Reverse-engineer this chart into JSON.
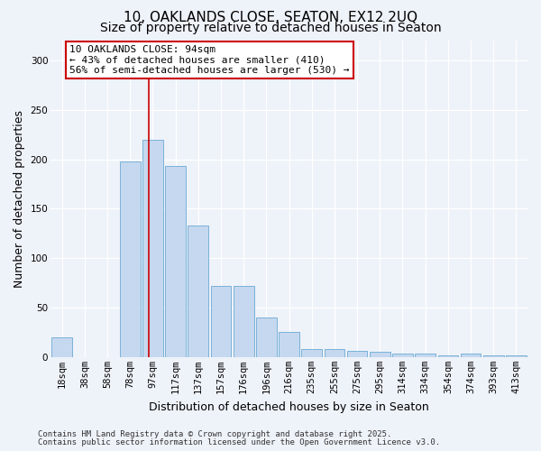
{
  "title_line1": "10, OAKLANDS CLOSE, SEATON, EX12 2UQ",
  "title_line2": "Size of property relative to detached houses in Seaton",
  "xlabel": "Distribution of detached houses by size in Seaton",
  "ylabel": "Number of detached properties",
  "bin_labels": [
    "18sqm",
    "38sqm",
    "58sqm",
    "78sqm",
    "97sqm",
    "117sqm",
    "137sqm",
    "157sqm",
    "176sqm",
    "196sqm",
    "216sqm",
    "235sqm",
    "255sqm",
    "275sqm",
    "295sqm",
    "314sqm",
    "334sqm",
    "354sqm",
    "374sqm",
    "393sqm",
    "413sqm"
  ],
  "bar_heights": [
    20,
    0,
    0,
    198,
    220,
    193,
    133,
    72,
    72,
    40,
    25,
    8,
    8,
    6,
    5,
    4,
    4,
    2,
    4,
    2,
    2
  ],
  "bar_color": "#c5d8ef",
  "bar_edge_color": "#6aaad4",
  "red_line_x": 3.82,
  "red_line_color": "#cc0000",
  "annotation_text": "10 OAKLANDS CLOSE: 94sqm\n← 43% of detached houses are smaller (410)\n56% of semi-detached houses are larger (530) →",
  "annotation_box_color": "#ffffff",
  "annotation_box_edge": "#cc0000",
  "ylim": [
    0,
    320
  ],
  "yticks": [
    0,
    50,
    100,
    150,
    200,
    250,
    300
  ],
  "footer_line1": "Contains HM Land Registry data © Crown copyright and database right 2025.",
  "footer_line2": "Contains public sector information licensed under the Open Government Licence v3.0.",
  "background_color": "#eef2f9",
  "title_fontsize": 11,
  "subtitle_fontsize": 10,
  "axis_label_fontsize": 9,
  "tick_fontsize": 7.5,
  "annotation_fontsize": 8,
  "footer_fontsize": 6.5
}
